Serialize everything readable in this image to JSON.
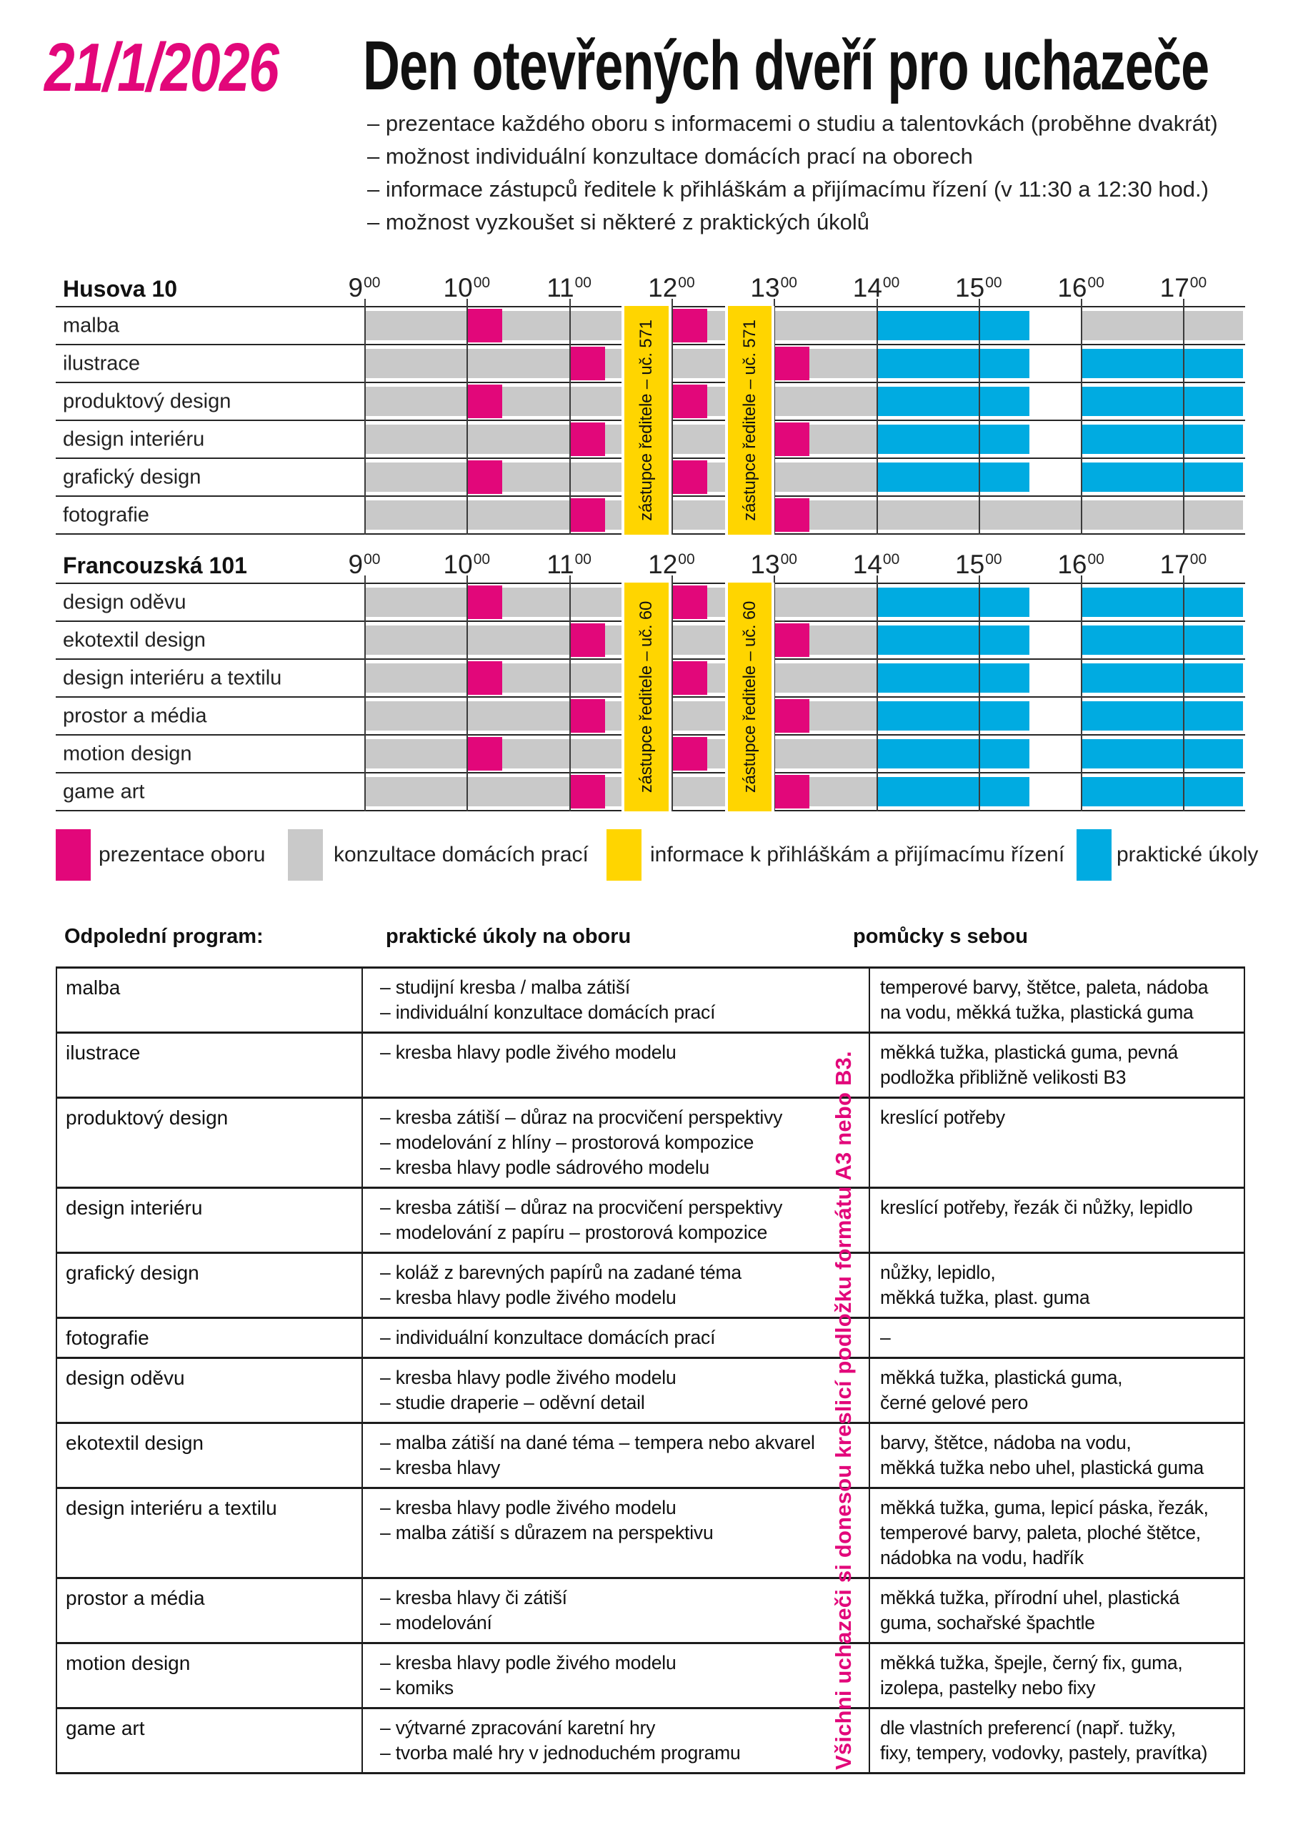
{
  "header": {
    "date": "21/1/2026",
    "title": "Den otevřených dveří pro uchazeče",
    "bullets": [
      "– prezentace každého oboru s informacemi o studiu a talentovkách (proběhne dvakrát)",
      "– možnost individuální konzultace domácích prací na oborech",
      "– informace zástupců ředitele k přihláškám a přijímacímu řízení (v 11:30 a 12:30 hod.)",
      "– možnost vyzkoušet si některé z praktických úkolů"
    ]
  },
  "colors": {
    "pink": "#E2077A",
    "gray": "#C9C9C9",
    "yellow": "#FFD500",
    "blue": "#00ABE1",
    "line": "#262626",
    "text": "#111111"
  },
  "timeline": {
    "hours": [
      "9",
      "10",
      "11",
      "12",
      "13",
      "14",
      "15",
      "16",
      "17"
    ],
    "minute_sup": "00",
    "span_hours": 8.583
  },
  "timetables": [
    {
      "location": "Husova 10",
      "room_note": "zástupce ředitele – uč. 571",
      "note_bands": [
        {
          "from": 2.54,
          "to": 2.97
        },
        {
          "from": 3.55,
          "to": 3.98
        }
      ],
      "rows": [
        {
          "label": "malba",
          "segments": [
            {
              "type": "gray",
              "from": 0,
              "to": 5
            },
            {
              "type": "pink",
              "from": 1,
              "to": 1.35
            },
            {
              "type": "pink",
              "from": 3,
              "to": 3.35
            },
            {
              "type": "blue",
              "from": 5,
              "to": 6.5
            },
            {
              "type": "gray",
              "from": 7,
              "to": 8.583
            }
          ]
        },
        {
          "label": "ilustrace",
          "segments": [
            {
              "type": "gray",
              "from": 0,
              "to": 5
            },
            {
              "type": "pink",
              "from": 2,
              "to": 2.35
            },
            {
              "type": "pink",
              "from": 4,
              "to": 4.35
            },
            {
              "type": "blue",
              "from": 5,
              "to": 6.5
            },
            {
              "type": "blue",
              "from": 7,
              "to": 8.583
            }
          ]
        },
        {
          "label": "produktový design",
          "segments": [
            {
              "type": "gray",
              "from": 0,
              "to": 5
            },
            {
              "type": "pink",
              "from": 1,
              "to": 1.35
            },
            {
              "type": "pink",
              "from": 3,
              "to": 3.35
            },
            {
              "type": "blue",
              "from": 5,
              "to": 6.5
            },
            {
              "type": "blue",
              "from": 7,
              "to": 8.583
            }
          ]
        },
        {
          "label": "design interiéru",
          "segments": [
            {
              "type": "gray",
              "from": 0,
              "to": 5
            },
            {
              "type": "pink",
              "from": 2,
              "to": 2.35
            },
            {
              "type": "pink",
              "from": 4,
              "to": 4.35
            },
            {
              "type": "blue",
              "from": 5,
              "to": 6.5
            },
            {
              "type": "blue",
              "from": 7,
              "to": 8.583
            }
          ]
        },
        {
          "label": "grafický design",
          "segments": [
            {
              "type": "gray",
              "from": 0,
              "to": 5
            },
            {
              "type": "pink",
              "from": 1,
              "to": 1.35
            },
            {
              "type": "pink",
              "from": 3,
              "to": 3.35
            },
            {
              "type": "blue",
              "from": 5,
              "to": 6.5
            },
            {
              "type": "blue",
              "from": 7,
              "to": 8.583
            }
          ]
        },
        {
          "label": "fotografie",
          "segments": [
            {
              "type": "gray",
              "from": 0,
              "to": 8.583
            },
            {
              "type": "pink",
              "from": 2,
              "to": 2.35
            },
            {
              "type": "pink",
              "from": 4,
              "to": 4.35
            }
          ]
        }
      ]
    },
    {
      "location": "Francouzská 101",
      "room_note": "zástupce ředitele – uč. 60",
      "note_bands": [
        {
          "from": 2.54,
          "to": 2.97
        },
        {
          "from": 3.55,
          "to": 3.98
        }
      ],
      "rows": [
        {
          "label": "design oděvu",
          "segments": [
            {
              "type": "gray",
              "from": 0,
              "to": 5
            },
            {
              "type": "pink",
              "from": 1,
              "to": 1.35
            },
            {
              "type": "pink",
              "from": 3,
              "to": 3.35
            },
            {
              "type": "blue",
              "from": 5,
              "to": 6.5
            },
            {
              "type": "blue",
              "from": 7,
              "to": 8.583
            }
          ]
        },
        {
          "label": "ekotextil design",
          "segments": [
            {
              "type": "gray",
              "from": 0,
              "to": 5
            },
            {
              "type": "pink",
              "from": 2,
              "to": 2.35
            },
            {
              "type": "pink",
              "from": 4,
              "to": 4.35
            },
            {
              "type": "blue",
              "from": 5,
              "to": 6.5
            },
            {
              "type": "blue",
              "from": 7,
              "to": 8.583
            }
          ]
        },
        {
          "label": "design interiéru a textilu",
          "segments": [
            {
              "type": "gray",
              "from": 0,
              "to": 5
            },
            {
              "type": "pink",
              "from": 1,
              "to": 1.35
            },
            {
              "type": "pink",
              "from": 3,
              "to": 3.35
            },
            {
              "type": "blue",
              "from": 5,
              "to": 6.5
            },
            {
              "type": "blue",
              "from": 7,
              "to": 8.583
            }
          ]
        },
        {
          "label": "prostor a média",
          "segments": [
            {
              "type": "gray",
              "from": 0,
              "to": 5
            },
            {
              "type": "pink",
              "from": 2,
              "to": 2.35
            },
            {
              "type": "pink",
              "from": 4,
              "to": 4.35
            },
            {
              "type": "blue",
              "from": 5,
              "to": 6.5
            },
            {
              "type": "blue",
              "from": 7,
              "to": 8.583
            }
          ]
        },
        {
          "label": "motion design",
          "segments": [
            {
              "type": "gray",
              "from": 0,
              "to": 5
            },
            {
              "type": "pink",
              "from": 1,
              "to": 1.35
            },
            {
              "type": "pink",
              "from": 3,
              "to": 3.35
            },
            {
              "type": "blue",
              "from": 5,
              "to": 6.5
            },
            {
              "type": "blue",
              "from": 7,
              "to": 8.583
            }
          ]
        },
        {
          "label": "game art",
          "segments": [
            {
              "type": "gray",
              "from": 0,
              "to": 5
            },
            {
              "type": "pink",
              "from": 2,
              "to": 2.35
            },
            {
              "type": "pink",
              "from": 4,
              "to": 4.35
            },
            {
              "type": "blue",
              "from": 5,
              "to": 6.5
            },
            {
              "type": "blue",
              "from": 7,
              "to": 8.583
            }
          ]
        }
      ]
    }
  ],
  "legend": [
    {
      "color_key": "pink",
      "label": "prezentace oboru"
    },
    {
      "color_key": "gray",
      "label": "konzultace domácích prací"
    },
    {
      "color_key": "yellow",
      "label": "informace k přihláškám a přijímacímu řízení"
    },
    {
      "color_key": "blue",
      "label": "praktické úkoly"
    }
  ],
  "afternoon": {
    "col_headers": [
      "Odpolední program:",
      "praktické úkoly na oboru",
      "pomůcky s sebou"
    ],
    "side_note": "Všichni uchazeči si donesou kreslicí podložku formátu A3 nebo B3.",
    "rows": [
      {
        "obor": "malba",
        "ukoly": [
          "– studijní kresba / malba zátiší",
          "– individuální konzultace domácích prací"
        ],
        "pomucky": [
          "temperové barvy, štětce, paleta, nádoba",
          "na vodu, měkká tužka, plastická guma"
        ]
      },
      {
        "obor": "ilustrace",
        "ukoly": [
          "– kresba hlavy podle živého modelu"
        ],
        "pomucky": [
          "měkká tužka, plastická guma, pevná",
          "podložka přibližně velikosti B3"
        ]
      },
      {
        "obor": "produktový design",
        "ukoly": [
          "– kresba zátiší – důraz na procvičení perspektivy",
          "– modelování z hlíny – prostorová kompozice",
          "– kresba hlavy podle sádrového modelu"
        ],
        "pomucky": [
          "kreslící potřeby"
        ]
      },
      {
        "obor": "design interiéru",
        "ukoly": [
          "– kresba zátiší – důraz na procvičení perspektivy",
          "– modelování z papíru – prostorová kompozice"
        ],
        "pomucky": [
          "kreslící potřeby, řezák či nůžky, lepidlo"
        ]
      },
      {
        "obor": "grafický design",
        "ukoly": [
          "– koláž z barevných papírů na zadané téma",
          "– kresba hlavy podle živého modelu"
        ],
        "pomucky": [
          "nůžky, lepidlo,",
          "měkká tužka, plast. guma"
        ]
      },
      {
        "obor": "fotografie",
        "ukoly": [
          "– individuální konzultace domácích prací"
        ],
        "pomucky": [
          "–"
        ]
      },
      {
        "obor": "design oděvu",
        "ukoly": [
          "– kresba hlavy podle živého modelu",
          "– studie draperie – oděvní detail"
        ],
        "pomucky": [
          "měkká tužka, plastická guma,",
          "černé gelové pero"
        ]
      },
      {
        "obor": "ekotextil design",
        "ukoly": [
          "– malba zátiší na dané téma – tempera nebo akvarel",
          "– kresba hlavy"
        ],
        "pomucky": [
          "barvy, štětce, nádoba na vodu,",
          "měkká tužka nebo uhel, plastická guma"
        ]
      },
      {
        "obor": "design interiéru a textilu",
        "ukoly": [
          "– kresba hlavy podle živého modelu",
          "– malba zátiší s důrazem na perspektivu"
        ],
        "pomucky": [
          "měkká tužka, guma, lepicí páska, řezák,",
          "temperové barvy, paleta, ploché štětce,",
          "nádobka na vodu, hadřík"
        ]
      },
      {
        "obor": "prostor a média",
        "ukoly": [
          "– kresba hlavy či zátiší",
          "– modelování"
        ],
        "pomucky": [
          "měkká tužka, přírodní uhel, plastická",
          "guma, sochařské špachtle"
        ]
      },
      {
        "obor": "motion design",
        "ukoly": [
          "– kresba hlavy podle živého modelu",
          "– komiks"
        ],
        "pomucky": [
          "měkká tužka, špejle, černý fix, guma,",
          "izolepa, pastelky nebo fixy"
        ]
      },
      {
        "obor": "game art",
        "ukoly": [
          "– výtvarné zpracování karetní hry",
          "– tvorba malé hry v jednoduchém programu"
        ],
        "pomucky": [
          "dle vlastních preferencí (např. tužky,",
          "fixy, tempery, vodovky, pastely, pravítka)"
        ]
      }
    ]
  }
}
